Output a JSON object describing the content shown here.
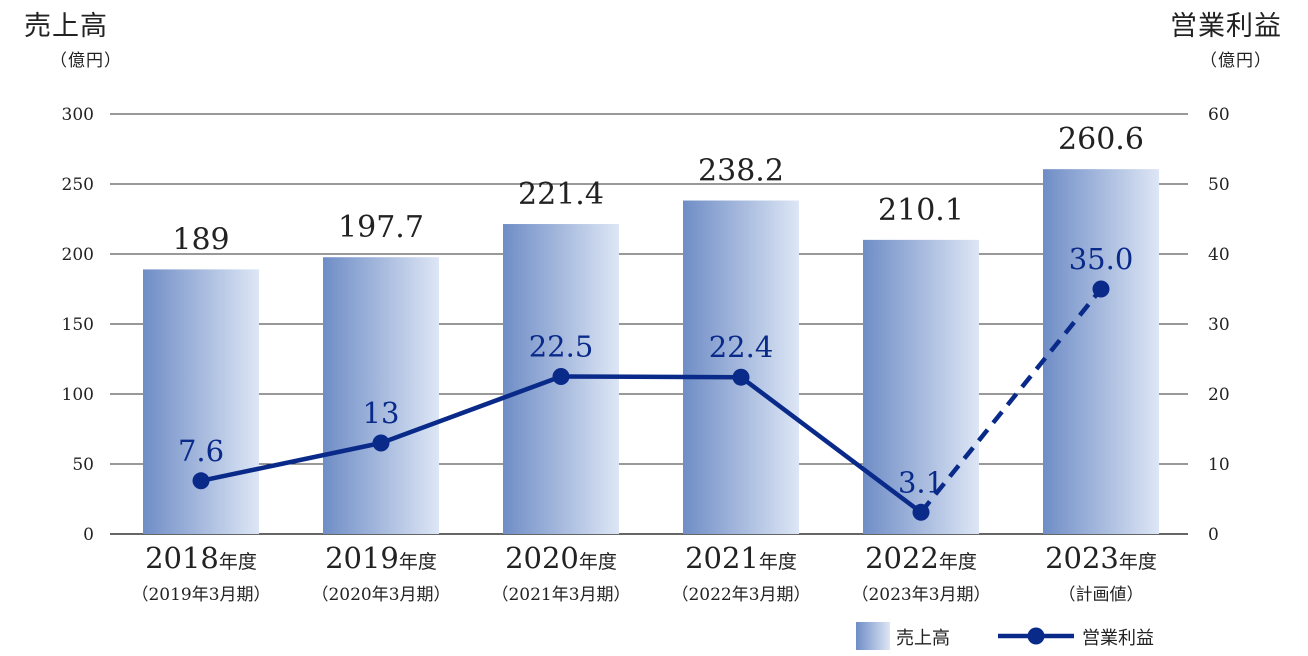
{
  "left_axis": {
    "title": "売上高",
    "unit": "（億円）"
  },
  "right_axis": {
    "title": "営業利益",
    "unit": "（億円）"
  },
  "colors": {
    "bar_dark": "#6f8dc6",
    "bar_light": "#dde6f5",
    "line": "#0a2a8a",
    "grid": "#333333",
    "text": "#222222"
  },
  "chart_data": {
    "type": "bar",
    "categories": [
      {
        "year": "2018",
        "suffix": "年度",
        "sub": "（2019年3月期）"
      },
      {
        "year": "2019",
        "suffix": "年度",
        "sub": "（2020年3月期）"
      },
      {
        "year": "2020",
        "suffix": "年度",
        "sub": "（2021年3月期）"
      },
      {
        "year": "2021",
        "suffix": "年度",
        "sub": "（2022年3月期）"
      },
      {
        "year": "2022",
        "suffix": "年度",
        "sub": "（2023年3月期）"
      },
      {
        "year": "2023",
        "suffix": "年度",
        "sub": "（計画値）"
      }
    ],
    "series": [
      {
        "name": "売上高",
        "type": "bar",
        "axis": "left",
        "values": [
          189,
          197.7,
          221.4,
          238.2,
          210.1,
          260.6
        ],
        "labels": [
          "189",
          "197.7",
          "221.4",
          "238.2",
          "210.1",
          "260.6"
        ]
      },
      {
        "name": "営業利益",
        "type": "line",
        "axis": "right",
        "values": [
          7.6,
          13,
          22.5,
          22.4,
          3.1,
          35.0
        ],
        "labels": [
          "7.6",
          "13",
          "22.5",
          "22.4",
          "3.1",
          "35.0"
        ],
        "dashed_from_index": 4
      }
    ],
    "y_left": {
      "min": 0,
      "max": 300,
      "ticks": [
        0,
        50,
        100,
        150,
        200,
        250,
        300
      ]
    },
    "y_right": {
      "min": 0,
      "max": 60,
      "ticks": [
        0,
        10,
        20,
        30,
        40,
        50,
        60
      ]
    },
    "grid": true,
    "legend": {
      "placement": "bottom-right",
      "entries": [
        "売上高",
        "営業利益"
      ]
    }
  }
}
